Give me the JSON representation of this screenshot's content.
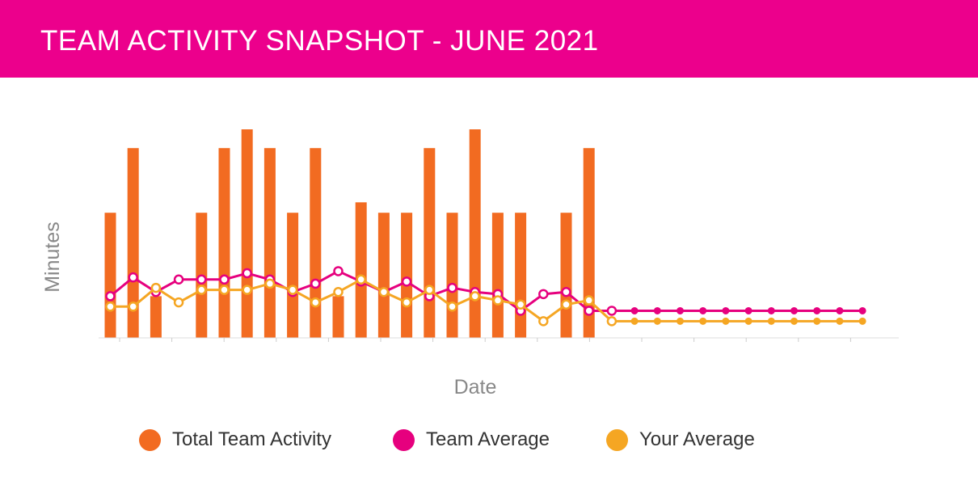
{
  "header": {
    "title": "TEAM ACTIVITY SNAPSHOT - JUNE 2021"
  },
  "colors": {
    "header_bg": "#ec008c",
    "total_team_activity": "#f26b21",
    "team_average": "#e6007e",
    "your_average": "#f5a623"
  },
  "chart_data": {
    "type": "bar",
    "title": "",
    "xlabel": "Date",
    "ylabel": "Minutes",
    "x": [
      1,
      2,
      3,
      4,
      5,
      6,
      7,
      8,
      9,
      10,
      11,
      12,
      13,
      14,
      15,
      16,
      17,
      18,
      19,
      20,
      21,
      22,
      23,
      24,
      25,
      26,
      27,
      28,
      29,
      30,
      31,
      32,
      33,
      34
    ],
    "ylim": [
      0,
      100
    ],
    "grid": false,
    "tick_labels_shown": false,
    "legend_position": "bottom",
    "series": [
      {
        "name": "Total Team Activity",
        "type": "bar",
        "color": "#f26b21",
        "values": [
          60,
          91,
          20,
          0,
          60,
          91,
          100,
          91,
          60,
          91,
          20,
          65,
          60,
          60,
          91,
          60,
          100,
          60,
          60,
          0,
          60,
          91,
          0,
          0,
          0,
          0,
          0,
          0,
          0,
          0,
          0,
          0,
          0,
          0
        ]
      },
      {
        "name": "Team Average",
        "type": "line",
        "color": "#e6007e",
        "values": [
          20,
          29,
          22,
          28,
          28,
          28,
          31,
          28,
          22,
          26,
          32,
          27,
          22,
          27,
          20,
          24,
          22,
          21,
          13,
          21,
          22,
          13,
          13,
          13,
          13,
          13,
          13,
          13,
          13,
          13,
          13,
          13,
          13,
          13
        ]
      },
      {
        "name": "Your Average",
        "type": "line",
        "color": "#f5a623",
        "values": [
          15,
          15,
          24,
          17,
          23,
          23,
          23,
          26,
          23,
          17,
          22,
          28,
          22,
          17,
          23,
          15,
          20,
          18,
          16,
          8,
          16,
          18,
          8,
          8,
          8,
          8,
          8,
          8,
          8,
          8,
          8,
          8,
          8,
          8
        ]
      }
    ]
  },
  "legend": {
    "items": [
      {
        "label": "Total Team Activity",
        "color": "#f26b21"
      },
      {
        "label": "Team Average",
        "color": "#e6007e"
      },
      {
        "label": "Your Average",
        "color": "#f5a623"
      }
    ]
  }
}
